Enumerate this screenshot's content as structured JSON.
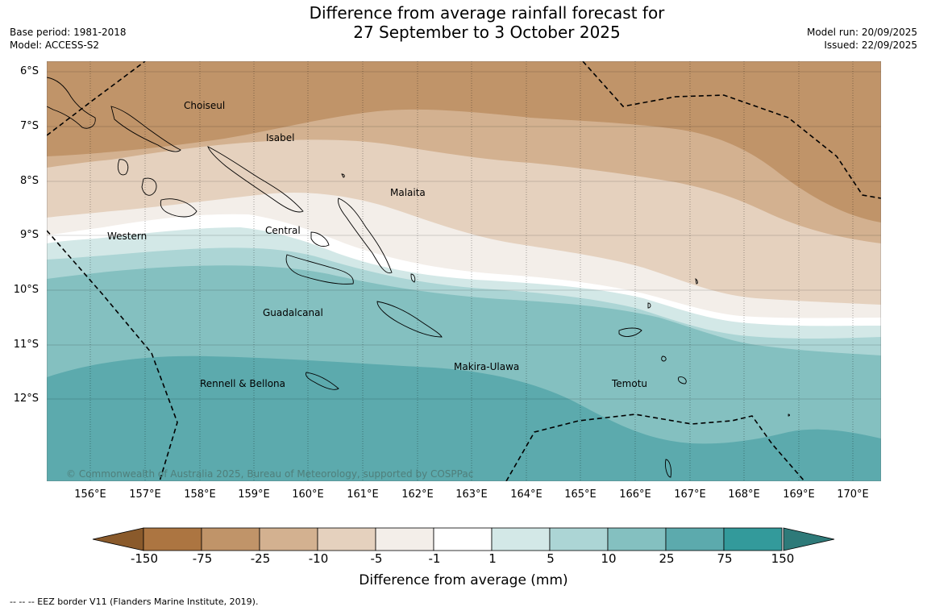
{
  "title": {
    "line1": "Difference from average rainfall forecast for",
    "line2": "27 September to 3 October 2025"
  },
  "info_left": {
    "base_period": "Base period: 1981-2018",
    "model": "Model: ACCESS-S2"
  },
  "info_right": {
    "model_run": "Model run: 20/09/2025",
    "issued": "Issued: 22/09/2025"
  },
  "map": {
    "lat_labels": [
      "6°S",
      "7°S",
      "8°S",
      "9°S",
      "10°S",
      "11°S",
      "12°S"
    ],
    "lon_labels": [
      "156°E",
      "157°E",
      "158°E",
      "159°E",
      "160°E",
      "161°E",
      "162°E",
      "163°E",
      "164°E",
      "165°E",
      "166°E",
      "167°E",
      "168°E",
      "169°E",
      "170°E"
    ],
    "regions": [
      "Choiseul",
      "Isabel",
      "Malaita",
      "Western",
      "Central",
      "Guadalcanal",
      "Makira-Ulawa",
      "Rennell & Bellona",
      "Temotu"
    ],
    "copyright": "© Commonwealth of Australia 2025, Bureau of Meteorology, supported by COSPPac",
    "band_colors": [
      "#c09469",
      "#d3b190",
      "#e5d1be",
      "#f3eee9",
      "#ffffff",
      "#d3e8e7",
      "#acd5d5",
      "#84c0c0",
      "#5caaad"
    ]
  },
  "colorbar": {
    "labels": [
      "-150",
      "-75",
      "-25",
      "-10",
      "-5",
      "-1",
      "1",
      "5",
      "10",
      "25",
      "75",
      "150"
    ],
    "colors": [
      "#ac7541",
      "#c09469",
      "#d3b190",
      "#e5d1be",
      "#f3eee9",
      "#ffffff",
      "#d3e8e7",
      "#acd5d5",
      "#84c0c0",
      "#5caaad",
      "#339a9b"
    ],
    "ext_low_color": "#8a5a2b",
    "ext_high_color": "#2e7a79",
    "title": "Difference from average (mm)"
  },
  "footnote": "--  --  -- EEZ border V11 (Flanders Marine Institute, 2019)."
}
